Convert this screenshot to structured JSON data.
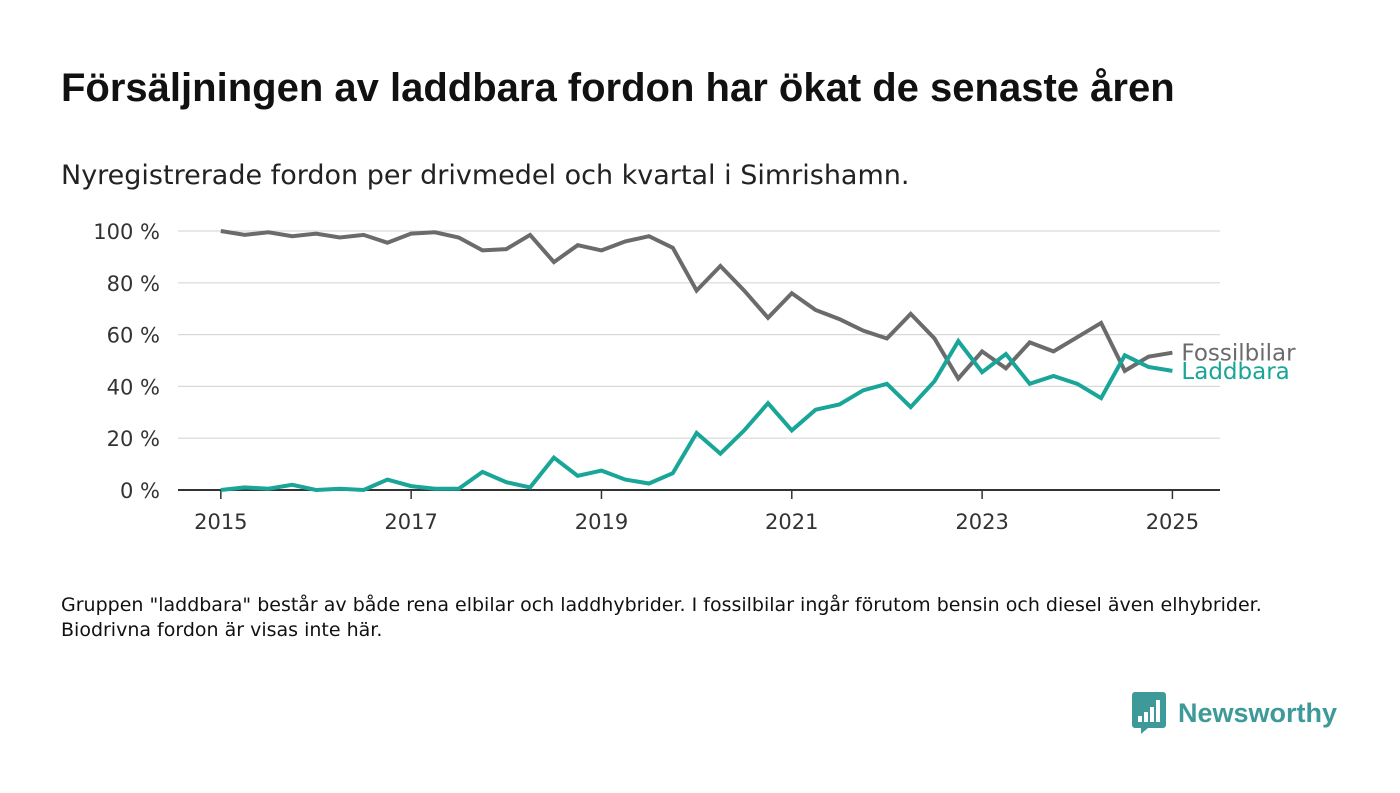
{
  "title": "Försäljningen av laddbara fordon har ökat de senaste åren",
  "subtitle": "Nyregistrerade fordon per drivmedel och kvartal i Simrishamn.",
  "footnote": "Gruppen \"laddbara\" består av både rena elbilar och laddhybrider. I fossilbilar ingår förutom bensin och diesel även elhybrider. Biodrivna fordon är visas inte här.",
  "brand": {
    "name": "Newsworthy",
    "icon": "bar-chart-speech-bubble-icon",
    "color": "#3d9a98"
  },
  "chart_data": {
    "type": "line",
    "x_unit": "year",
    "xlim": [
      2014.55,
      2025.5
    ],
    "ylim": [
      0,
      100
    ],
    "x_ticks": [
      2015,
      2017,
      2019,
      2021,
      2023,
      2025
    ],
    "y_ticks": [
      0,
      20,
      40,
      60,
      80,
      100
    ],
    "y_tick_labels": [
      "0 %",
      "20 %",
      "40 %",
      "60 %",
      "80 %",
      "100 %"
    ],
    "grid": "horizontal",
    "legend": "direct-labels-right",
    "x": [
      2015.0,
      2015.25,
      2015.5,
      2015.75,
      2016.0,
      2016.25,
      2016.5,
      2016.75,
      2017.0,
      2017.25,
      2017.5,
      2017.75,
      2018.0,
      2018.25,
      2018.5,
      2018.75,
      2019.0,
      2019.25,
      2019.5,
      2019.75,
      2020.0,
      2020.25,
      2020.5,
      2020.75,
      2021.0,
      2021.25,
      2021.5,
      2021.75,
      2022.0,
      2022.25,
      2022.5,
      2022.75,
      2023.0,
      2023.25,
      2023.5,
      2023.75,
      2024.0,
      2024.25,
      2024.5,
      2024.75,
      2025.0
    ],
    "series": [
      {
        "name": "Fossilbilar",
        "color": "#6b6b6b",
        "values": [
          100,
          98.5,
          99.5,
          98,
          99,
          97.5,
          98.5,
          95.5,
          99,
          99.5,
          97.5,
          92.5,
          93,
          98.5,
          88,
          94.5,
          92.5,
          96,
          98,
          93.5,
          77,
          86.5,
          77,
          66.5,
          76,
          69.5,
          66,
          61.5,
          58.5,
          68,
          58.5,
          43,
          53.5,
          47,
          57,
          53.5,
          59,
          64.5,
          46,
          51.5,
          53
        ]
      },
      {
        "name": "Laddbara",
        "color": "#19a598",
        "values": [
          0,
          1,
          0.5,
          2,
          0,
          0.5,
          0,
          4,
          1.5,
          0.5,
          0.5,
          7,
          3,
          1,
          12.5,
          5.5,
          7.5,
          4,
          2.5,
          6.5,
          22,
          14,
          23,
          33.5,
          23,
          31,
          33,
          38.5,
          41,
          32,
          42,
          57.5,
          45.5,
          52.5,
          41,
          44,
          41,
          35.5,
          52,
          47.5,
          46
        ]
      }
    ]
  }
}
